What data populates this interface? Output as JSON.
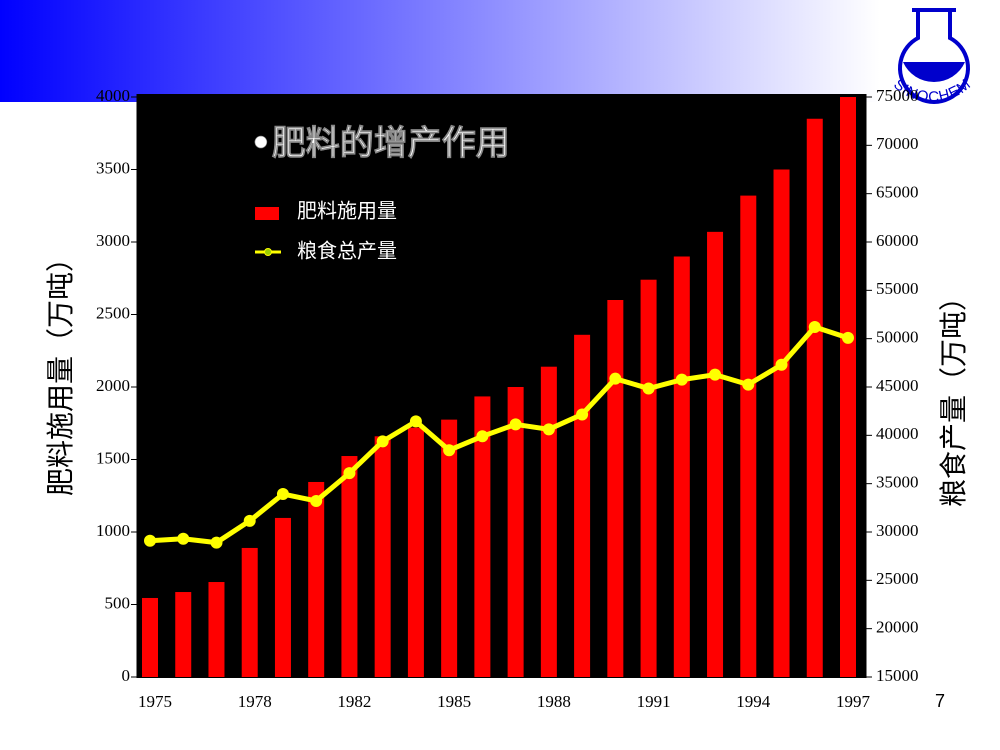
{
  "chart_data": {
    "type": "bar",
    "title": "•肥料的增产作用",
    "ylabel": "肥料施用量（万吨）",
    "y2label": "粮食产量（万吨）",
    "categories": [
      "1975",
      null,
      null,
      "1978",
      null,
      null,
      "1982",
      null,
      null,
      "1985",
      null,
      null,
      "1988",
      null,
      null,
      "1991",
      null,
      null,
      "1994",
      null,
      null,
      "1997"
    ],
    "series": [
      {
        "name": "肥料施用量",
        "type": "bar",
        "color": "#ff0000",
        "axis": "y",
        "values": [
          545,
          586,
          655,
          890,
          1097,
          1345,
          1524,
          1660,
          1720,
          1775,
          1935,
          2000,
          2140,
          2360,
          2600,
          2740,
          2900,
          3070,
          3320,
          3500,
          3850,
          4000
        ]
      },
      {
        "name": "粮食总产量",
        "type": "line",
        "color": "#ffff00",
        "axis": "y2",
        "values": [
          29100,
          29300,
          28900,
          31150,
          33930,
          33210,
          36090,
          39380,
          41440,
          38460,
          39900,
          41130,
          40620,
          42160,
          45860,
          44840,
          45760,
          46280,
          45250,
          47300,
          51210,
          50080
        ]
      }
    ],
    "ylim": [
      0,
      4000
    ],
    "yticks": [
      0,
      500,
      1000,
      1500,
      2000,
      2500,
      3000,
      3500,
      4000
    ],
    "y2lim": [
      15000,
      75000
    ],
    "y2ticks": [
      15000,
      20000,
      25000,
      30000,
      35000,
      40000,
      45000,
      50000,
      55000,
      60000,
      65000,
      70000,
      75000
    ]
  },
  "logo": "SINOCHEM",
  "page_number": "7"
}
